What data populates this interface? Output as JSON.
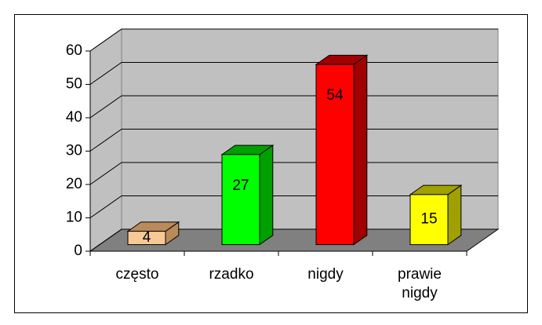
{
  "chart_data": {
    "type": "bar3d",
    "categories": [
      "często",
      "rzadko",
      "nigdy",
      "prawie nigdy"
    ],
    "values": [
      4,
      27,
      54,
      15
    ],
    "colors": [
      "#f8c896",
      "#00ff00",
      "#ff0000",
      "#ffff00"
    ],
    "side_colors": [
      "#b98a5a",
      "#00a000",
      "#a00000",
      "#a0a000"
    ],
    "ylim": [
      0,
      60
    ],
    "yticks": [
      0,
      10,
      20,
      30,
      40,
      50,
      60
    ],
    "grid": true
  }
}
